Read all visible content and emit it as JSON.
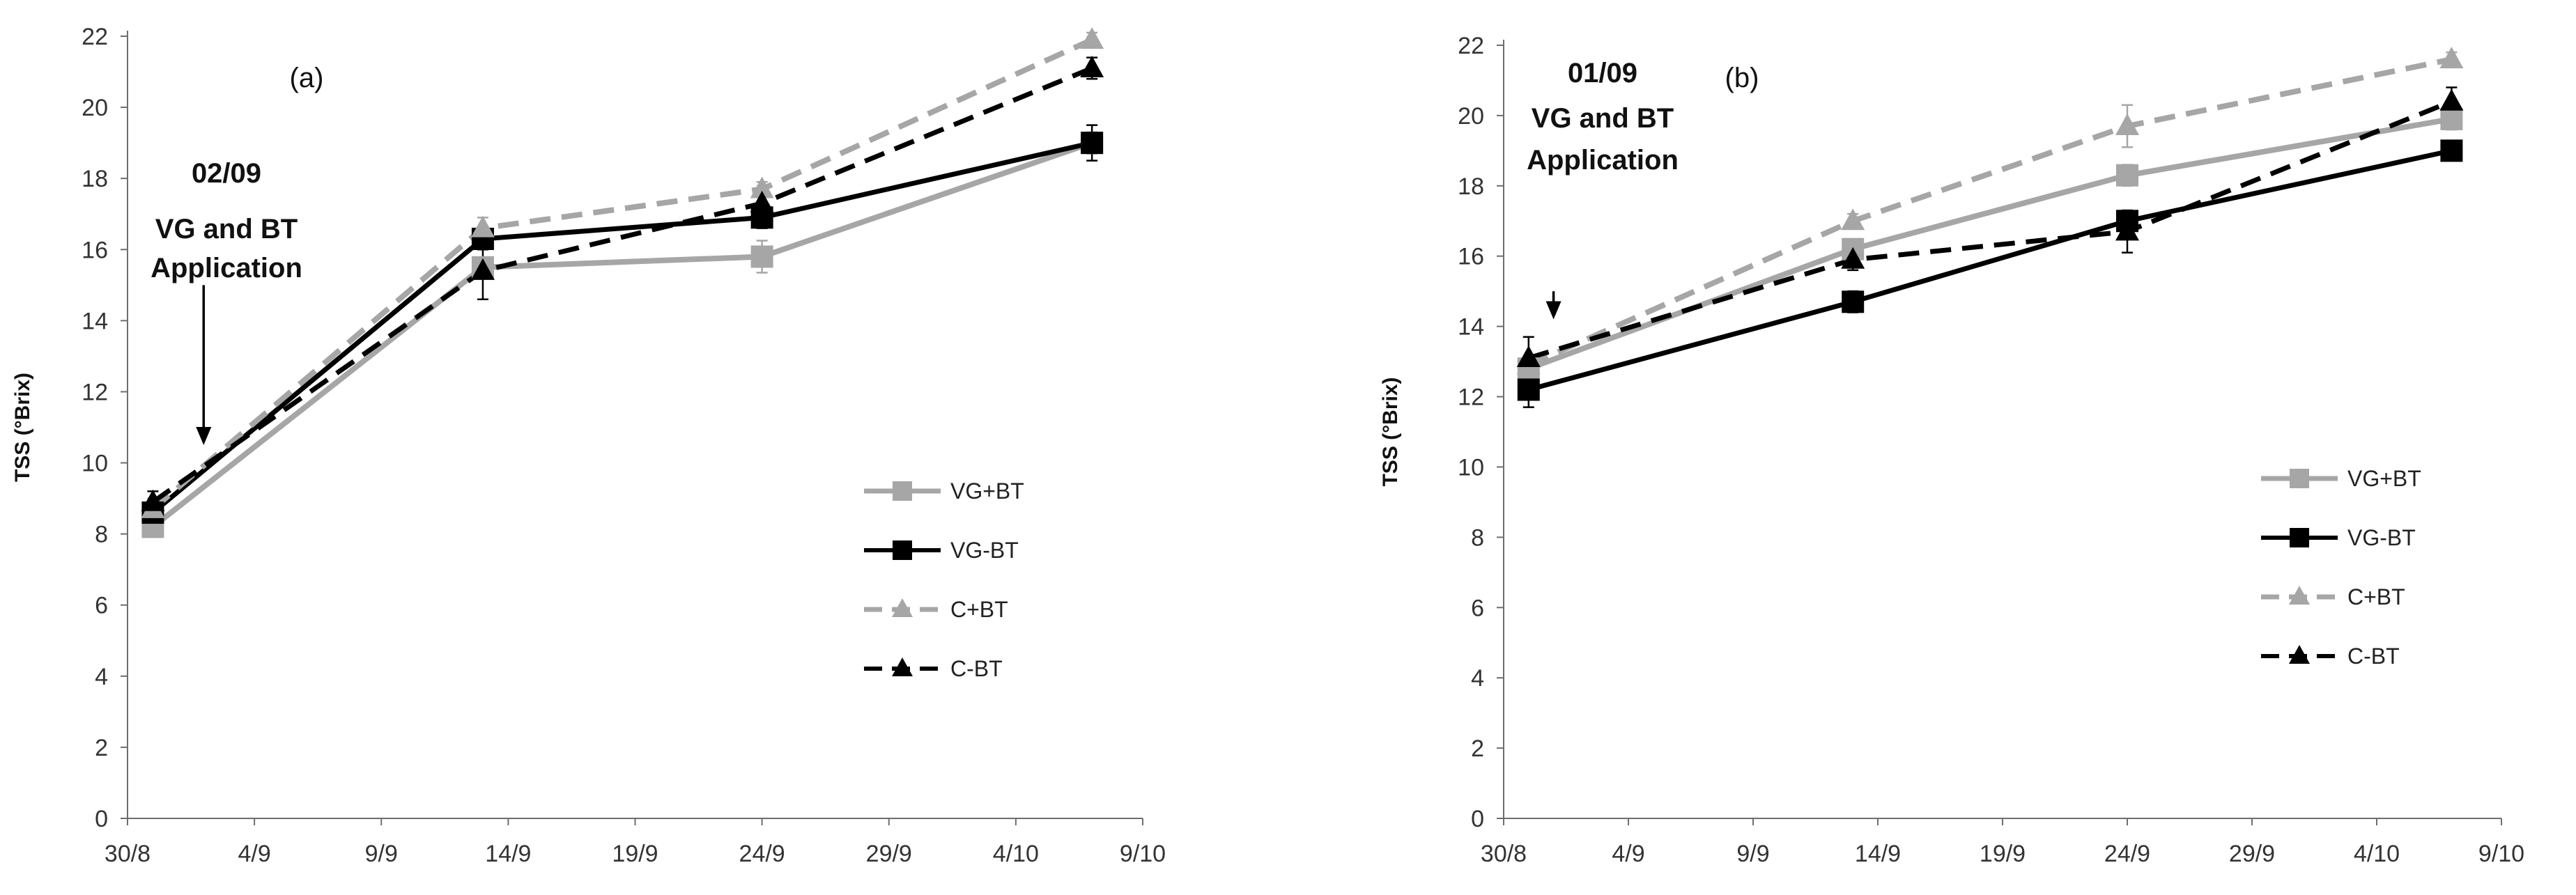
{
  "chart_data": [
    {
      "type": "line",
      "panel_label": "(a)",
      "title": "",
      "xlabel": "",
      "ylabel": "TSS (°Brix)",
      "ylim": [
        0,
        22
      ],
      "yticks": [
        0,
        2,
        4,
        6,
        8,
        10,
        12,
        14,
        16,
        18,
        20,
        22
      ],
      "xlim": [
        "2016-08-30",
        "2016-10-09"
      ],
      "xtick_labels": [
        "30/8",
        "4/9",
        "9/9",
        "14/9",
        "19/9",
        "24/9",
        "29/9",
        "4/10",
        "9/10"
      ],
      "x": [
        "2016-08-31",
        "2016-09-13",
        "2016-09-24",
        "2016-10-07"
      ],
      "grid": false,
      "legend_position": "right-middle",
      "series": [
        {
          "name": "VG+BT",
          "values": [
            8.2,
            15.5,
            15.8,
            19.0
          ],
          "errors": [
            0.2,
            0.2,
            0.45,
            0.3
          ],
          "color": "#a6a6a6",
          "dashed": false,
          "marker": "square"
        },
        {
          "name": "VG-BT",
          "values": [
            8.6,
            16.3,
            16.9,
            19.0
          ],
          "errors": [
            0.3,
            0.3,
            0.3,
            0.5
          ],
          "color": "#000000",
          "dashed": false,
          "marker": "square"
        },
        {
          "name": "C+BT",
          "values": [
            8.7,
            16.6,
            17.7,
            21.9
          ],
          "errors": [
            0.3,
            0.3,
            0.2,
            0.2
          ],
          "color": "#a6a6a6",
          "dashed": true,
          "marker": "triangle"
        },
        {
          "name": "C-BT",
          "values": [
            8.9,
            15.4,
            17.3,
            21.1
          ],
          "errors": [
            0.3,
            0.8,
            0.2,
            0.3
          ],
          "color": "#000000",
          "dashed": true,
          "marker": "triangle"
        }
      ],
      "annotation": {
        "date_line": "02/09",
        "line2": "VG and BT",
        "line3": "Application",
        "arrow_x": "2016-09-02",
        "arrow_y": [
          15.0,
          10.5
        ]
      }
    },
    {
      "type": "line",
      "panel_label": "(b)",
      "title": "",
      "xlabel": "",
      "ylabel": "TSS (°Brix)",
      "ylim": [
        0,
        22
      ],
      "yticks": [
        0,
        2,
        4,
        6,
        8,
        10,
        12,
        14,
        16,
        18,
        20,
        22
      ],
      "xlim": [
        "2016-08-30",
        "2016-10-09"
      ],
      "xtick_labels": [
        "30/8",
        "4/9",
        "9/9",
        "14/9",
        "19/9",
        "24/9",
        "29/9",
        "4/10",
        "9/10"
      ],
      "x": [
        "2016-08-31",
        "2016-09-13",
        "2016-09-24",
        "2016-10-07"
      ],
      "grid": false,
      "legend_position": "right-middle",
      "series": [
        {
          "name": "VG+BT",
          "values": [
            12.8,
            16.2,
            18.3,
            19.9
          ],
          "errors": [
            0.2,
            0.2,
            0.3,
            0.3
          ],
          "color": "#a6a6a6",
          "dashed": false,
          "marker": "square"
        },
        {
          "name": "VG-BT",
          "values": [
            12.2,
            14.7,
            17.0,
            19.0
          ],
          "errors": [
            0.5,
            0.3,
            0.3,
            0.2
          ],
          "color": "#000000",
          "dashed": false,
          "marker": "square"
        },
        {
          "name": "C+BT",
          "values": [
            12.9,
            17.0,
            19.7,
            21.6
          ],
          "errors": [
            0.2,
            0.2,
            0.6,
            0.2
          ],
          "color": "#a6a6a6",
          "dashed": true,
          "marker": "triangle"
        },
        {
          "name": "C-BT",
          "values": [
            13.1,
            15.9,
            16.7,
            20.4
          ],
          "errors": [
            0.6,
            0.3,
            0.6,
            0.4
          ],
          "color": "#000000",
          "dashed": true,
          "marker": "triangle"
        }
      ],
      "annotation": {
        "date_line": "01/09",
        "line2": "VG and BT",
        "line3": "Application",
        "arrow_x": "2016-09-01",
        "arrow_y": [
          15.0,
          14.2
        ]
      }
    }
  ]
}
